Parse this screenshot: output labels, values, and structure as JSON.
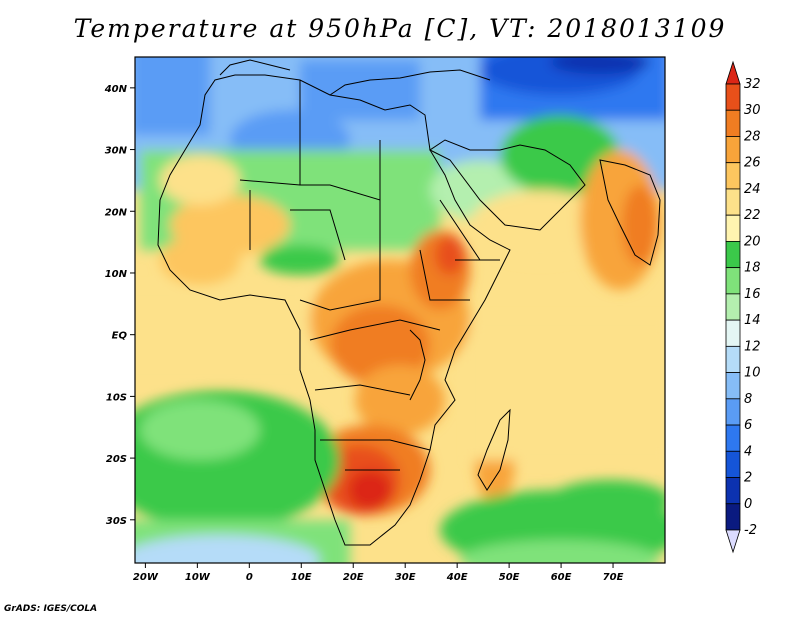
{
  "title": "Temperature at 950hPa [C], VT: 2018013109",
  "credit": "GrADS: IGES/COLA",
  "map": {
    "variable": "Temperature at 950hPa",
    "units": "C",
    "valid_time": "2018013109",
    "lon_range": [
      -22,
      80
    ],
    "lat_range": [
      -37,
      45
    ],
    "lon_ticks": [
      {
        "lon": -20,
        "label": "20W"
      },
      {
        "lon": -10,
        "label": "10W"
      },
      {
        "lon": 0,
        "label": "0"
      },
      {
        "lon": 10,
        "label": "10E"
      },
      {
        "lon": 20,
        "label": "20E"
      },
      {
        "lon": 30,
        "label": "30E"
      },
      {
        "lon": 40,
        "label": "40E"
      },
      {
        "lon": 50,
        "label": "50E"
      },
      {
        "lon": 60,
        "label": "60E"
      },
      {
        "lon": 70,
        "label": "70E"
      }
    ],
    "lat_ticks": [
      {
        "lat": 40,
        "label": "40N"
      },
      {
        "lat": 30,
        "label": "30N"
      },
      {
        "lat": 20,
        "label": "20N"
      },
      {
        "lat": 10,
        "label": "10N"
      },
      {
        "lat": 0,
        "label": "EQ"
      },
      {
        "lat": -10,
        "label": "10S"
      },
      {
        "lat": -20,
        "label": "20S"
      },
      {
        "lat": -30,
        "label": "30S"
      }
    ]
  },
  "colorbar": {
    "levels": [
      "-2",
      "0",
      "2",
      "4",
      "6",
      "8",
      "10",
      "12",
      "14",
      "16",
      "18",
      "20",
      "22",
      "24",
      "26",
      "28",
      "30",
      "32"
    ],
    "colors": [
      "#dcdcff",
      "#0a1a80",
      "#0c32b0",
      "#1555d8",
      "#2e78f0",
      "#5a9cf5",
      "#86bdf7",
      "#b5dcf8",
      "#e4f6f4",
      "#b4efaf",
      "#7fe27a",
      "#3bc94a",
      "#fff4b0",
      "#fde18a",
      "#fdc65f",
      "#f8a43a",
      "#f07d22",
      "#e8501a",
      "#dc2616"
    ]
  }
}
